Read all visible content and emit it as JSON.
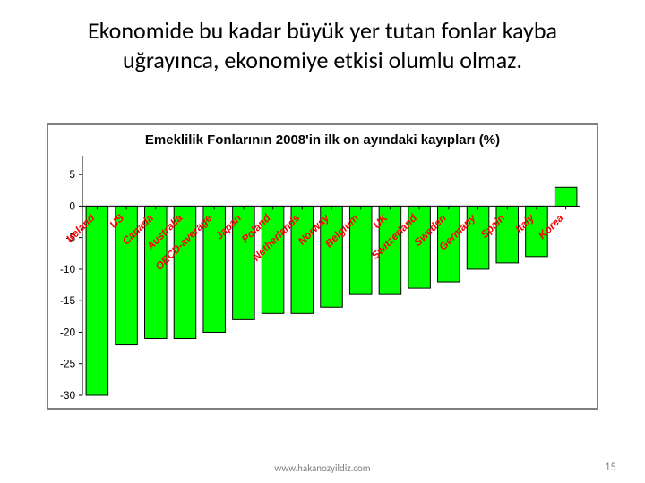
{
  "headline": "Ekonomide bu kadar büyük yer tutan fonlar kayba uğrayınca, ekonomiye etkisi olumlu olmaz.",
  "footer_url": "www.hakanozyildiz.com",
  "page_number": "15",
  "chart": {
    "type": "bar",
    "title": "Emeklilik Fonlarının 2008'in ilk on ayındaki kayıpları (%)",
    "title_fontsize": 15,
    "title_font_family": "Arial",
    "categories": [
      "Ireland",
      "US",
      "Canada",
      "Australia",
      "OECD-average",
      "Japan",
      "Poland",
      "Netherlands",
      "Norway",
      "Belgium",
      "UK",
      "Switzerland",
      "Sweden",
      "Germany",
      "Spain",
      "Italy",
      "Korea"
    ],
    "values": [
      -30,
      -22,
      -21,
      -21,
      -20,
      -18,
      -17,
      -17,
      -16,
      -14,
      -14,
      -13,
      -12,
      -10,
      -9,
      -8,
      3
    ],
    "bar_fill": "#00ff00",
    "bar_stroke": "#000000",
    "bar_width_ratio": 0.75,
    "background_color": "#ffffff",
    "border_color": "#808080",
    "ylim": [
      -30,
      8
    ],
    "yticks": [
      -30,
      -25,
      -20,
      -15,
      -10,
      -5,
      0,
      5
    ],
    "label_color": "#ff0000",
    "label_fontsize": 12,
    "label_font_style": "italic bold",
    "label_rotation_deg": -45,
    "axis_color": "#000000",
    "tick_fontsize": 12
  }
}
